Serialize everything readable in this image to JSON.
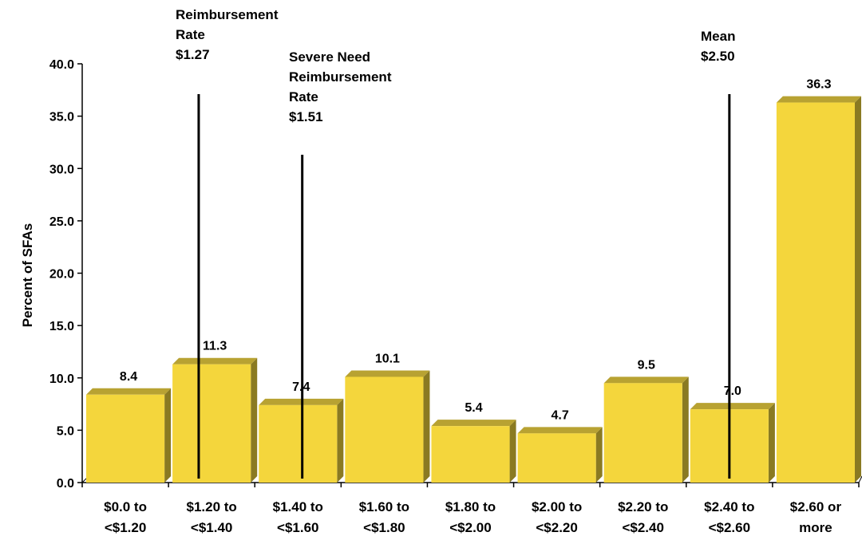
{
  "chart_data": {
    "type": "bar",
    "ylabel": "Percent of SFAs",
    "ylim": [
      0,
      40
    ],
    "yticks": [
      "0.0",
      "5.0",
      "10.0",
      "15.0",
      "20.0",
      "25.0",
      "30.0",
      "35.0",
      "40.0"
    ],
    "categories": [
      [
        "$0.0 to",
        "<$1.20"
      ],
      [
        "$1.20 to",
        "<$1.40"
      ],
      [
        "$1.40 to",
        "<$1.60"
      ],
      [
        "$1.60 to",
        "<$1.80"
      ],
      [
        "$1.80 to",
        "<$2.00"
      ],
      [
        "$2.00 to",
        "<$2.20"
      ],
      [
        "$2.20 to",
        "<$2.40"
      ],
      [
        "$2.40 to",
        "<$2.60"
      ],
      [
        "$2.60 or",
        "more"
      ]
    ],
    "values": [
      8.4,
      11.3,
      7.4,
      10.1,
      5.4,
      4.7,
      9.5,
      7.0,
      36.3
    ],
    "value_labels": [
      "8.4",
      "11.3",
      "7.4",
      "10.1",
      "5.4",
      "4.7",
      "9.5",
      "7.0",
      "36.3"
    ],
    "grid": false,
    "bar_colors": {
      "face": "#f4d63c",
      "top": "#b8a232",
      "side": "#8a7a22"
    },
    "reference_lines": [
      {
        "name": "reimbursement-rate",
        "label_lines": [
          "Reimbursement",
          "Rate",
          "$1.27"
        ],
        "category_position": 1.35
      },
      {
        "name": "severe-need-rate",
        "label_lines": [
          "Severe Need",
          "Reimbursement",
          "Rate",
          "$1.51"
        ],
        "category_position": 2.55
      },
      {
        "name": "mean",
        "label_lines": [
          "Mean",
          "$2.50"
        ],
        "category_position": 7.5
      }
    ]
  }
}
